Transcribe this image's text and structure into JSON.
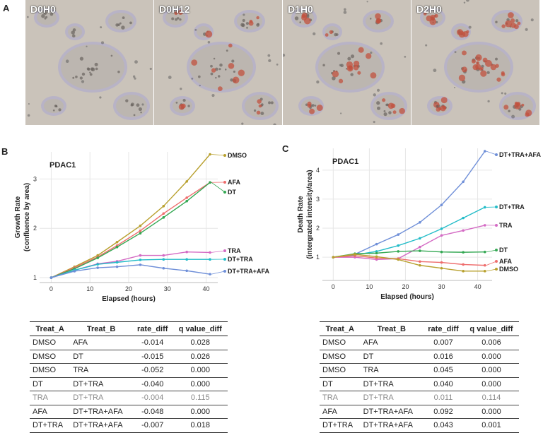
{
  "panel_a": {
    "letter": "A",
    "images": [
      {
        "label": "D0H0",
        "red_intensity": 0.0
      },
      {
        "label": "D0H12",
        "red_intensity": 0.35
      },
      {
        "label": "D1H0",
        "red_intensity": 0.55
      },
      {
        "label": "D2H0",
        "red_intensity": 0.9
      }
    ]
  },
  "panel_b": {
    "letter": "B",
    "table": {
      "headers": [
        "Treat_A",
        "Treat_B",
        "rate_diff",
        "q value_diff"
      ],
      "rows": [
        [
          "DMSO",
          "AFA",
          "-0.014",
          "0.028"
        ],
        [
          "DMSO",
          "DT",
          "-0.015",
          "0.026"
        ],
        [
          "DMSO",
          "TRA",
          "-0.052",
          "0.000"
        ],
        [
          "DT",
          "DT+TRA",
          "-0.040",
          "0.000"
        ],
        [
          "TRA",
          "DT+TRA",
          "-0.004",
          "0.115"
        ],
        [
          "AFA",
          "DT+TRA+AFA",
          "-0.048",
          "0.000"
        ],
        [
          "DT+TRA",
          "DT+TRA+AFA",
          "-0.007",
          "0.018"
        ]
      ],
      "muted_row": 4
    }
  },
  "panel_c": {
    "letter": "C",
    "table": {
      "headers": [
        "Treat_A",
        "Treat_B",
        "rate_diff",
        "q value_diff"
      ],
      "rows": [
        [
          "DMSO",
          "AFA",
          "0.007",
          "0.006"
        ],
        [
          "DMSO",
          "DT",
          "0.016",
          "0.000"
        ],
        [
          "DMSO",
          "TRA",
          "0.045",
          "0.000"
        ],
        [
          "DT",
          "DT+TRA",
          "0.040",
          "0.000"
        ],
        [
          "TRA",
          "DT+TRA",
          "0.011",
          "0.114"
        ],
        [
          "AFA",
          "DT+TRA+AFA",
          "0.092",
          "0.000"
        ],
        [
          "DT+TRA",
          "DT+TRA+AFA",
          "0.043",
          "0.001"
        ]
      ],
      "muted_row": 4
    }
  },
  "chart_data": [
    {
      "id": "growth",
      "type": "line",
      "title": "PDAC1",
      "xlabel": "Elapsed (hours)",
      "ylabel_lines": [
        "Growth Rate",
        "(confluence by area)"
      ],
      "xlim": [
        -3,
        43
      ],
      "ylim": [
        0.9,
        3.55
      ],
      "xticks": [
        0,
        10,
        20,
        30,
        40
      ],
      "yticks": [
        1,
        2,
        3
      ],
      "x": [
        0,
        6,
        12,
        17,
        23,
        29,
        35,
        41
      ],
      "series": [
        {
          "name": "DMSO",
          "color": "#b8a02e",
          "values": [
            1.0,
            1.22,
            1.45,
            1.72,
            2.05,
            2.45,
            2.95,
            3.5
          ]
        },
        {
          "name": "AFA",
          "color": "#ee6d6d",
          "values": [
            1.0,
            1.2,
            1.42,
            1.65,
            1.95,
            2.3,
            2.62,
            2.93
          ]
        },
        {
          "name": "DT",
          "color": "#34a853",
          "values": [
            1.0,
            1.18,
            1.4,
            1.62,
            1.9,
            2.22,
            2.55,
            2.93
          ]
        },
        {
          "name": "TRA",
          "color": "#d46bc4",
          "values": [
            1.0,
            1.15,
            1.28,
            1.33,
            1.45,
            1.45,
            1.52,
            1.51
          ]
        },
        {
          "name": "DT+TRA",
          "color": "#22bcc8",
          "values": [
            1.0,
            1.15,
            1.27,
            1.31,
            1.36,
            1.37,
            1.37,
            1.37
          ]
        },
        {
          "name": "DT+TRA+AFA",
          "color": "#6f8fd8",
          "values": [
            1.0,
            1.13,
            1.2,
            1.22,
            1.26,
            1.19,
            1.14,
            1.07
          ]
        }
      ]
    },
    {
      "id": "death",
      "type": "line",
      "title": "PDAC1",
      "xlabel": "Elapsed (hours)",
      "ylabel_lines": [
        "Death Rate",
        "(intergrated intensity/area)"
      ],
      "xlim": [
        -3,
        44
      ],
      "ylim": [
        0.2,
        4.75
      ],
      "xticks": [
        0,
        10,
        20,
        30,
        40
      ],
      "yticks": [
        1,
        2,
        3,
        4
      ],
      "x": [
        0,
        6,
        12,
        18,
        24,
        30,
        36,
        42
      ],
      "series": [
        {
          "name": "DT+TRA+AFA",
          "color": "#6f8fd8",
          "values": [
            1.0,
            1.1,
            1.45,
            1.78,
            2.2,
            2.8,
            3.6,
            4.65
          ]
        },
        {
          "name": "DT+TRA",
          "color": "#22bcc8",
          "values": [
            1.0,
            1.08,
            1.2,
            1.4,
            1.65,
            1.98,
            2.35,
            2.72
          ]
        },
        {
          "name": "TRA",
          "color": "#d46bc4",
          "values": [
            1.0,
            1.0,
            0.92,
            0.95,
            1.35,
            1.75,
            1.92,
            2.1
          ]
        },
        {
          "name": "DT",
          "color": "#34a853",
          "values": [
            1.0,
            1.12,
            1.14,
            1.2,
            1.22,
            1.18,
            1.17,
            1.18
          ]
        },
        {
          "name": "AFA",
          "color": "#ee6d6d",
          "values": [
            1.0,
            1.05,
            0.97,
            0.95,
            0.85,
            0.82,
            0.75,
            0.72
          ]
        },
        {
          "name": "DMSO",
          "color": "#b8a02e",
          "values": [
            1.0,
            1.1,
            1.02,
            0.92,
            0.72,
            0.62,
            0.52,
            0.52
          ]
        }
      ]
    }
  ]
}
